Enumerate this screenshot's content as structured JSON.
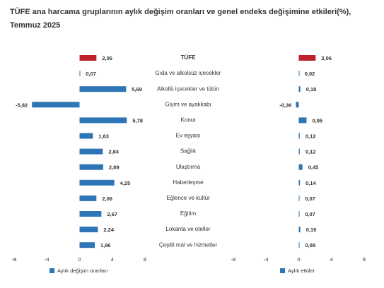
{
  "chart_data": [
    {
      "type": "bar",
      "orientation": "horizontal",
      "title": "TÜFE ana harcama gruplarının aylık değişim oranları ve genel endeks değişimine etkileri(%), Temmuz 2025",
      "categories": [
        "TÜFE",
        "Gıda ve alkolsüz içecekler",
        "Alkollü içecekler ve tütün",
        "Giyim ve ayakkabı",
        "Konut",
        "Ev eşyası",
        "Sağlık",
        "Ulaştırma",
        "Haberleşme",
        "Eğlence ve kültür",
        "Eğitim",
        "Lokanta ve oteller",
        "Çeşitli mal ve hizmetler"
      ],
      "series": [
        {
          "name": "Aylık değişim oranları",
          "color": "#2e75b6",
          "colors": [
            "#c0202a",
            "#2e75b6",
            "#2e75b6",
            "#2e75b6",
            "#2e75b6",
            "#2e75b6",
            "#2e75b6",
            "#2e75b6",
            "#2e75b6",
            "#2e75b6",
            "#2e75b6",
            "#2e75b6",
            "#2e75b6"
          ],
          "values": [
            2.06,
            0.07,
            5.69,
            -5.82,
            5.78,
            1.63,
            2.84,
            2.89,
            4.25,
            2.06,
            2.67,
            2.24,
            1.86
          ],
          "value_labels": [
            "2,06",
            "0,07",
            "5,69",
            "-5,82",
            "5,78",
            "1,63",
            "2,84",
            "2,89",
            "4,25",
            "2,06",
            "2,67",
            "2,24",
            "1,86"
          ]
        }
      ],
      "xlim": [
        -8,
        8
      ],
      "xticks": [
        -8,
        -4,
        0,
        4,
        8
      ]
    },
    {
      "type": "bar",
      "orientation": "horizontal",
      "series": [
        {
          "name": "Aylık etkiler",
          "color": "#2e75b6",
          "colors": [
            "#c0202a",
            "#2e75b6",
            "#2e75b6",
            "#2e75b6",
            "#2e75b6",
            "#2e75b6",
            "#2e75b6",
            "#2e75b6",
            "#2e75b6",
            "#2e75b6",
            "#2e75b6",
            "#2e75b6",
            "#2e75b6"
          ],
          "values": [
            2.06,
            0.02,
            0.19,
            -0.36,
            0.95,
            0.12,
            0.12,
            0.45,
            0.14,
            0.07,
            0.07,
            0.19,
            0.08
          ],
          "value_labels": [
            "2,06",
            "0,02",
            "0,19",
            "-0,36",
            "0,95",
            "0,12",
            "0,12",
            "0,45",
            "0,14",
            "0,07",
            "0,07",
            "0,19",
            "0,08"
          ]
        }
      ],
      "xlim": [
        -8,
        8
      ],
      "xticks": [
        -8,
        -4,
        0,
        4,
        8
      ]
    }
  ]
}
